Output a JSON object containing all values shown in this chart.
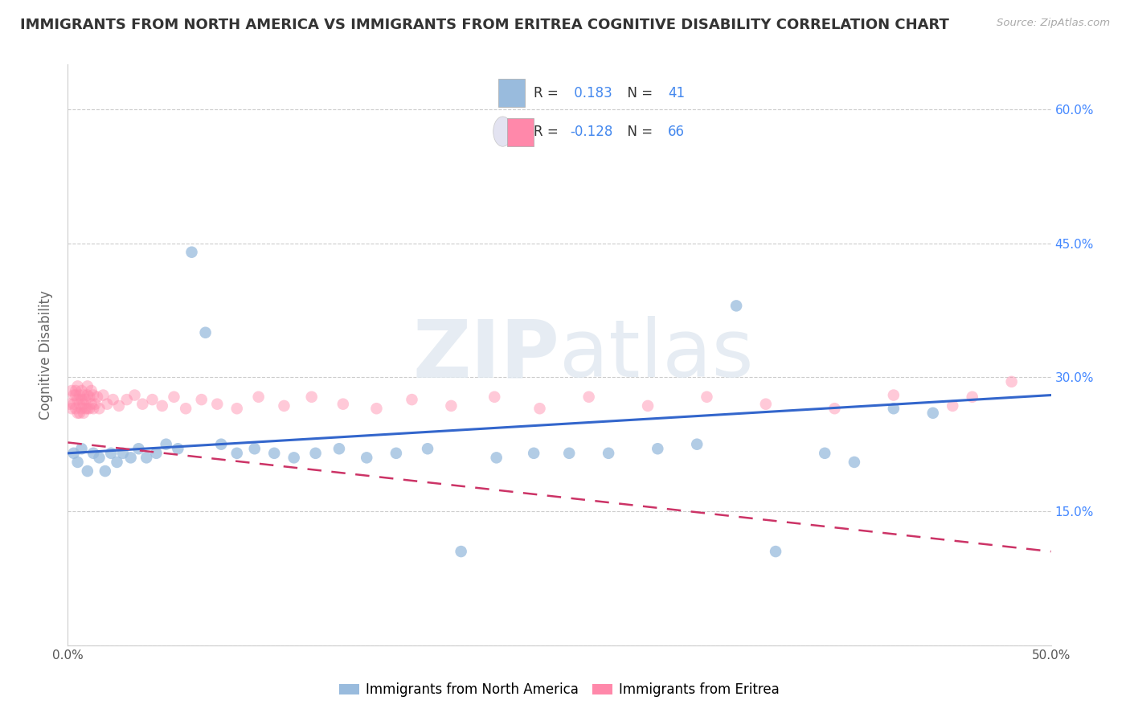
{
  "title": "IMMIGRANTS FROM NORTH AMERICA VS IMMIGRANTS FROM ERITREA COGNITIVE DISABILITY CORRELATION CHART",
  "source": "Source: ZipAtlas.com",
  "ylabel": "Cognitive Disability",
  "xlim": [
    0.0,
    0.5
  ],
  "ylim": [
    0.0,
    0.65
  ],
  "xticks": [
    0.0,
    0.1,
    0.2,
    0.3,
    0.4,
    0.5
  ],
  "xtick_labels": [
    "0.0%",
    "",
    "",
    "",
    "",
    "50.0%"
  ],
  "yticks": [
    0.0,
    0.15,
    0.3,
    0.45,
    0.6
  ],
  "right_yticks": [
    0.15,
    0.3,
    0.45,
    0.6
  ],
  "right_ytick_labels": [
    "15.0%",
    "30.0%",
    "45.0%",
    "60.0%"
  ],
  "grid_color": "#cccccc",
  "background_color": "#ffffff",
  "blue_color": "#99bbdd",
  "pink_color": "#ff88aa",
  "blue_R": 0.183,
  "blue_N": 41,
  "pink_R": -0.128,
  "pink_N": 66,
  "legend_label_blue": "Immigrants from North America",
  "legend_label_pink": "Immigrants from Eritrea",
  "blue_line_start_y": 0.215,
  "blue_line_end_y": 0.28,
  "pink_line_start_y": 0.227,
  "pink_line_end_y": 0.105,
  "blue_scatter_x": [
    0.003,
    0.005,
    0.007,
    0.01,
    0.013,
    0.016,
    0.019,
    0.022,
    0.025,
    0.028,
    0.032,
    0.036,
    0.04,
    0.045,
    0.05,
    0.056,
    0.063,
    0.07,
    0.078,
    0.086,
    0.095,
    0.105,
    0.115,
    0.126,
    0.138,
    0.152,
    0.167,
    0.183,
    0.2,
    0.218,
    0.237,
    0.255,
    0.275,
    0.3,
    0.32,
    0.34,
    0.36,
    0.385,
    0.4,
    0.42,
    0.44
  ],
  "blue_scatter_y": [
    0.215,
    0.205,
    0.22,
    0.195,
    0.215,
    0.21,
    0.195,
    0.215,
    0.205,
    0.215,
    0.21,
    0.22,
    0.21,
    0.215,
    0.225,
    0.22,
    0.44,
    0.35,
    0.225,
    0.215,
    0.22,
    0.215,
    0.21,
    0.215,
    0.22,
    0.21,
    0.215,
    0.22,
    0.105,
    0.21,
    0.215,
    0.215,
    0.215,
    0.22,
    0.225,
    0.38,
    0.105,
    0.215,
    0.205,
    0.265,
    0.26
  ],
  "pink_scatter_x": [
    0.001,
    0.002,
    0.002,
    0.003,
    0.003,
    0.004,
    0.004,
    0.004,
    0.005,
    0.005,
    0.005,
    0.006,
    0.006,
    0.006,
    0.007,
    0.007,
    0.007,
    0.008,
    0.008,
    0.008,
    0.009,
    0.009,
    0.01,
    0.01,
    0.01,
    0.011,
    0.011,
    0.012,
    0.012,
    0.013,
    0.013,
    0.014,
    0.015,
    0.016,
    0.018,
    0.02,
    0.023,
    0.026,
    0.03,
    0.034,
    0.038,
    0.043,
    0.048,
    0.054,
    0.06,
    0.068,
    0.076,
    0.086,
    0.097,
    0.11,
    0.124,
    0.14,
    0.157,
    0.175,
    0.195,
    0.217,
    0.24,
    0.265,
    0.295,
    0.325,
    0.355,
    0.39,
    0.42,
    0.45,
    0.46,
    0.48
  ],
  "pink_scatter_y": [
    0.27,
    0.285,
    0.265,
    0.28,
    0.27,
    0.285,
    0.265,
    0.28,
    0.275,
    0.26,
    0.29,
    0.27,
    0.28,
    0.26,
    0.275,
    0.265,
    0.285,
    0.27,
    0.28,
    0.26,
    0.275,
    0.265,
    0.28,
    0.265,
    0.29,
    0.265,
    0.278,
    0.27,
    0.285,
    0.265,
    0.28,
    0.27,
    0.278,
    0.265,
    0.28,
    0.27,
    0.275,
    0.268,
    0.275,
    0.28,
    0.27,
    0.275,
    0.268,
    0.278,
    0.265,
    0.275,
    0.27,
    0.265,
    0.278,
    0.268,
    0.278,
    0.27,
    0.265,
    0.275,
    0.268,
    0.278,
    0.265,
    0.278,
    0.268,
    0.278,
    0.27,
    0.265,
    0.28,
    0.268,
    0.278,
    0.295
  ]
}
